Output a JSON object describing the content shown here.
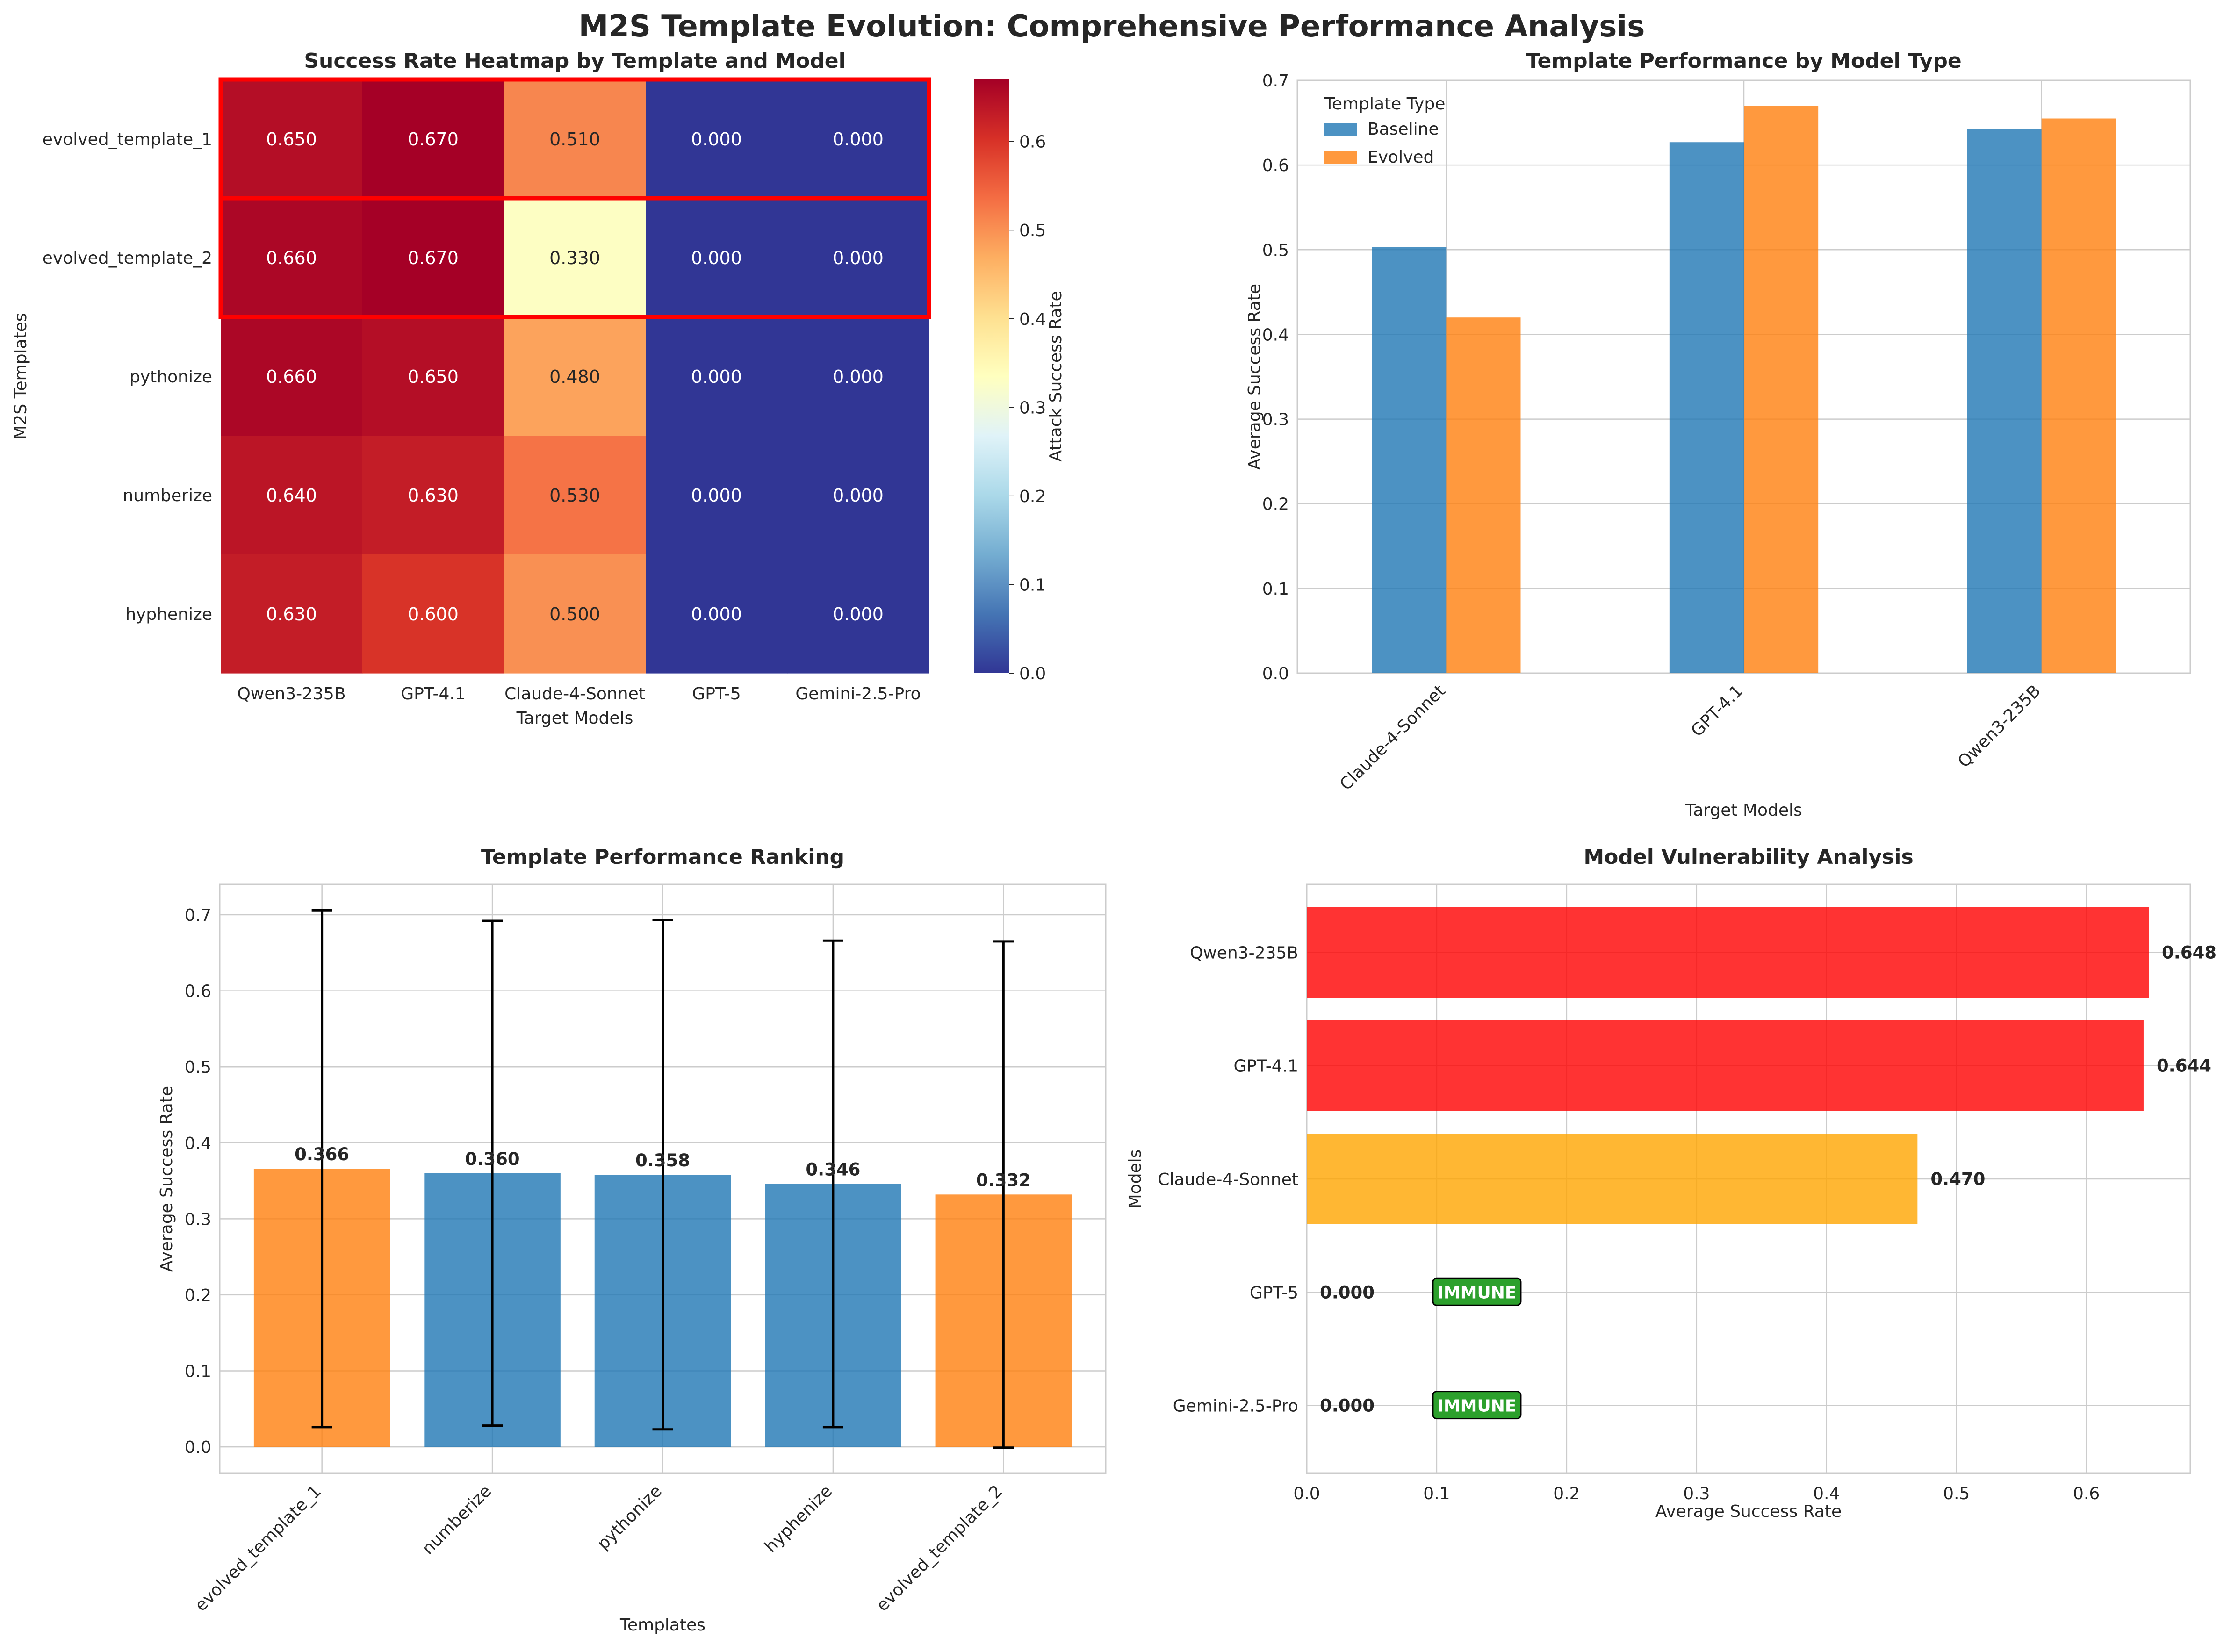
{
  "suptitle": "M2S Template Evolution: Comprehensive Performance Analysis",
  "colors": {
    "baseline": "#1f77b4",
    "evolved": "#ff7f0e",
    "vuln_high": "#ff0000",
    "vuln_mid": "#ffa500",
    "immune_badge": "#2ca02c",
    "highlight_box": "#ff0000",
    "grid": "#cccccc",
    "axes_edge": "#cccccc"
  },
  "chart_data": [
    {
      "type": "heatmap",
      "title": "Success Rate Heatmap by Template and Model",
      "xlabel": "Target Models",
      "ylabel": "M2S Templates",
      "colorbar_label": "Attack Success Rate",
      "colorbar_range": [
        0,
        0.67
      ],
      "colorbar_ticks": [
        0.0,
        0.1,
        0.2,
        0.3,
        0.4,
        0.5,
        0.6
      ],
      "colormap": "RdYlBu_r",
      "rows": [
        "evolved_template_1",
        "evolved_template_2",
        "pythonize",
        "numberize",
        "hyphenize"
      ],
      "columns": [
        "Qwen3-235B",
        "GPT-4.1",
        "Claude-4-Sonnet",
        "GPT-5",
        "Gemini-2.5-Pro"
      ],
      "values": [
        [
          0.65,
          0.67,
          0.51,
          0.0,
          0.0
        ],
        [
          0.66,
          0.67,
          0.33,
          0.0,
          0.0
        ],
        [
          0.66,
          0.65,
          0.48,
          0.0,
          0.0
        ],
        [
          0.64,
          0.63,
          0.53,
          0.0,
          0.0
        ],
        [
          0.63,
          0.6,
          0.5,
          0.0,
          0.0
        ]
      ],
      "value_labels": [
        [
          "0.650",
          "0.670",
          "0.510",
          "0.000",
          "0.000"
        ],
        [
          "0.660",
          "0.670",
          "0.330",
          "0.000",
          "0.000"
        ],
        [
          "0.660",
          "0.650",
          "0.480",
          "0.000",
          "0.000"
        ],
        [
          "0.640",
          "0.630",
          "0.530",
          "0.000",
          "0.000"
        ],
        [
          "0.630",
          "0.600",
          "0.500",
          "0.000",
          "0.000"
        ]
      ],
      "highlighted_rows": [
        0,
        1
      ]
    },
    {
      "type": "bar",
      "title": "Template Performance by Model Type",
      "xlabel": "Target Models",
      "ylabel": "Average Success Rate",
      "legend_title": "Template Type",
      "legend_position": "top-left",
      "categories": [
        "Claude-4-Sonnet",
        "GPT-4.1",
        "Qwen3-235B"
      ],
      "series": [
        {
          "name": "Baseline",
          "values": [
            0.503,
            0.627,
            0.643
          ]
        },
        {
          "name": "Evolved",
          "values": [
            0.42,
            0.67,
            0.655
          ]
        }
      ],
      "ylim": [
        0,
        0.7
      ],
      "yticks": [
        "0.0",
        "0.1",
        "0.2",
        "0.3",
        "0.4",
        "0.5",
        "0.6",
        "0.7"
      ]
    },
    {
      "type": "bar",
      "title": "Template Performance Ranking",
      "xlabel": "Templates",
      "ylabel": "Average Success Rate",
      "categories": [
        "evolved_template_1",
        "numberize",
        "pythonize",
        "hyphenize",
        "evolved_template_2"
      ],
      "values": [
        0.366,
        0.36,
        0.358,
        0.346,
        0.332
      ],
      "value_labels": [
        "0.366",
        "0.360",
        "0.358",
        "0.346",
        "0.332"
      ],
      "errors": [
        0.34,
        0.332,
        0.335,
        0.32,
        0.333
      ],
      "bar_types": [
        "evolved",
        "baseline",
        "baseline",
        "baseline",
        "evolved"
      ],
      "ylim": [
        -0.035,
        0.74
      ],
      "yticks": [
        "0.0",
        "0.1",
        "0.2",
        "0.3",
        "0.4",
        "0.5",
        "0.6",
        "0.7"
      ]
    },
    {
      "type": "bar",
      "orientation": "horizontal",
      "title": "Model Vulnerability Analysis",
      "xlabel": "Average Success Rate",
      "ylabel": "Models",
      "categories": [
        "Qwen3-235B",
        "GPT-4.1",
        "Claude-4-Sonnet",
        "GPT-5",
        "Gemini-2.5-Pro"
      ],
      "values": [
        0.648,
        0.644,
        0.47,
        0.0,
        0.0
      ],
      "value_labels": [
        "0.648",
        "0.644",
        "0.470",
        "0.000",
        "0.000"
      ],
      "bar_levels": [
        "high",
        "high",
        "mid",
        "none",
        "none"
      ],
      "badges": [
        "",
        "",
        "",
        "IMMUNE",
        "IMMUNE"
      ],
      "xlim": [
        0,
        0.68
      ],
      "xticks": [
        "0.0",
        "0.1",
        "0.2",
        "0.3",
        "0.4",
        "0.5",
        "0.6"
      ]
    }
  ]
}
